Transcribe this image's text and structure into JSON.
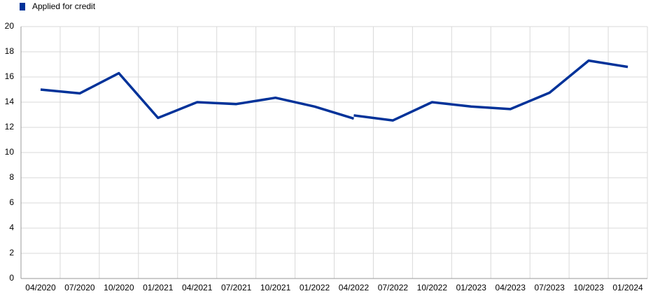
{
  "chart_data": {
    "type": "line",
    "categories": [
      "04/2020",
      "07/2020",
      "10/2020",
      "01/2021",
      "04/2021",
      "07/2021",
      "10/2021",
      "01/2022",
      "04/2022",
      "07/2022",
      "10/2022",
      "01/2023",
      "04/2023",
      "07/2023",
      "10/2023",
      "01/2024"
    ],
    "series": [
      {
        "name": "Applied for credit",
        "color": "#003299",
        "values": [
          15.0,
          14.7,
          16.3,
          12.75,
          14.0,
          13.85,
          14.35,
          13.65,
          12.7,
          null,
          null,
          null,
          null,
          null,
          null,
          null
        ]
      },
      {
        "color": "#003299",
        "values": [
          null,
          null,
          null,
          null,
          null,
          null,
          null,
          null,
          12.95,
          12.55,
          14.0,
          13.65,
          13.45,
          14.75,
          17.3,
          16.8
        ]
      }
    ],
    "ylim": [
      0,
      20
    ],
    "yticks": [
      0,
      2,
      4,
      6,
      8,
      10,
      12,
      14,
      16,
      18,
      20
    ],
    "grid": true,
    "legend": "top-left"
  }
}
